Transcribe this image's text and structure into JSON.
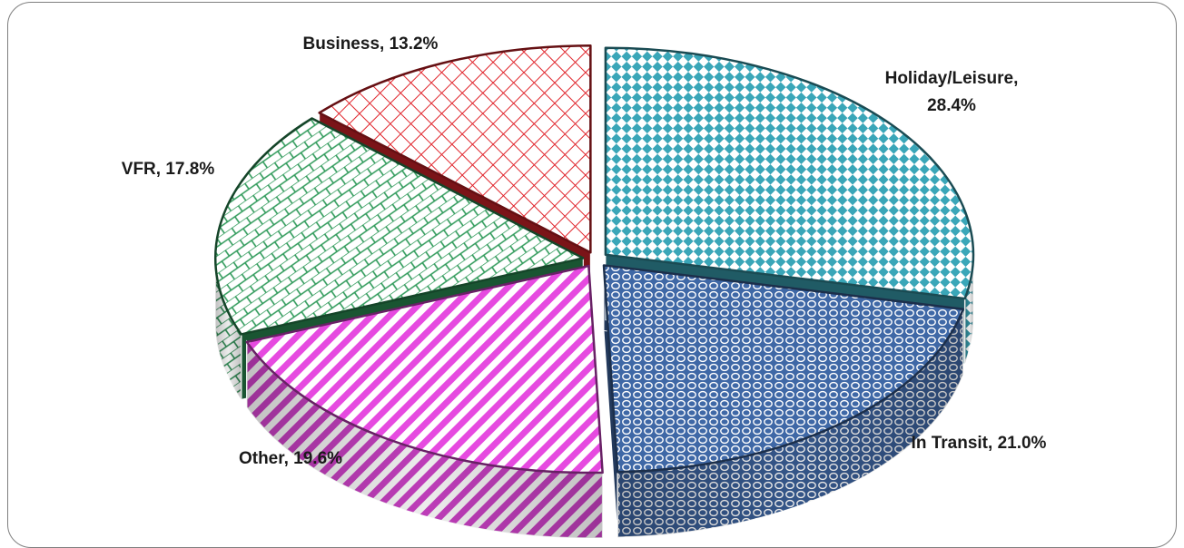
{
  "chart_data": {
    "type": "pie",
    "title": "",
    "style": "3d-exploded",
    "slices": [
      {
        "name": "Holiday/Leisure",
        "value": 28.4,
        "label_line1": "Holiday/Leisure,",
        "label_line2": "28.4%",
        "color": "#3aa6b8",
        "pattern": "checker"
      },
      {
        "name": "In Transit",
        "value": 21.0,
        "label_line1": "In Transit, 21.0%",
        "color": "#3f68a6",
        "pattern": "dots"
      },
      {
        "name": "Other",
        "value": 19.6,
        "label_line1": "Other, 19.6%",
        "color": "#e64ae0",
        "pattern": "diagonal"
      },
      {
        "name": "VFR",
        "value": 17.8,
        "label_line1": "VFR, 17.8%",
        "color": "#2f9a5a",
        "pattern": "brick"
      },
      {
        "name": "Business",
        "value": 13.2,
        "label_line1": "Business, 13.2%",
        "color": "#e0242b",
        "pattern": "grid"
      }
    ]
  }
}
